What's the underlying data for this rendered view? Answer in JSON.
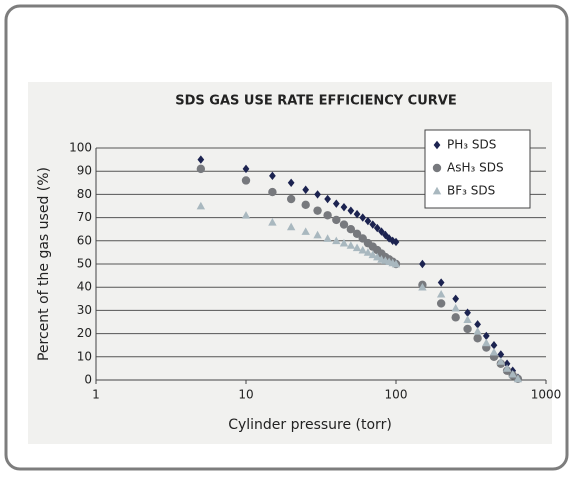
{
  "chart_data": {
    "type": "scatter",
    "title": "SDS GAS USE RATE EFFICIENCY CURVE",
    "x_label": "Cylinder pressure (torr)",
    "y_label": "Percent of the gas used (%)",
    "x": [
      5,
      10,
      15,
      20,
      25,
      30,
      35,
      40,
      45,
      50,
      55,
      60,
      65,
      70,
      75,
      80,
      85,
      90,
      95,
      100,
      150,
      200,
      250,
      300,
      350,
      400,
      450,
      500,
      550,
      600,
      650
    ],
    "series": [
      {
        "name": "PH₃ SDS",
        "color": "#1c2350",
        "marker": "diamond",
        "values": [
          95,
          91,
          88,
          85,
          82,
          80,
          78,
          76,
          74.5,
          73,
          71.5,
          70,
          68.5,
          67,
          65.5,
          64,
          62.5,
          61,
          60,
          59.5,
          50,
          42,
          35,
          29,
          24,
          19,
          15,
          11,
          7,
          4,
          1
        ]
      },
      {
        "name": "AsH₃ SDS",
        "color": "#77797d",
        "marker": "circle",
        "values": [
          91,
          86,
          81,
          78,
          75.5,
          73,
          71,
          69,
          67,
          65,
          63,
          61,
          59,
          57.5,
          56,
          54.5,
          53,
          52,
          51,
          50,
          41,
          33,
          27,
          22,
          18,
          14,
          10,
          7,
          4,
          2,
          0.5
        ]
      },
      {
        "name": "BF₃ SDS",
        "color": "#a9b8bf",
        "marker": "triangle",
        "values": [
          75,
          71,
          68,
          66,
          64,
          62.5,
          61,
          60,
          59,
          58,
          57,
          56,
          55,
          54,
          53,
          52,
          51.5,
          51,
          50.5,
          50,
          40,
          37,
          31,
          26,
          21,
          16,
          12,
          8,
          5,
          2.5,
          0.5
        ]
      }
    ],
    "xscale": "log",
    "xlim": [
      1,
      1000
    ],
    "xticks": [
      1,
      10,
      100,
      1000
    ],
    "ylim": [
      0,
      100
    ],
    "yticks": [
      0,
      10,
      20,
      30,
      40,
      50,
      60,
      70,
      80,
      90,
      100
    ],
    "grid": true,
    "legend": "upper right"
  }
}
